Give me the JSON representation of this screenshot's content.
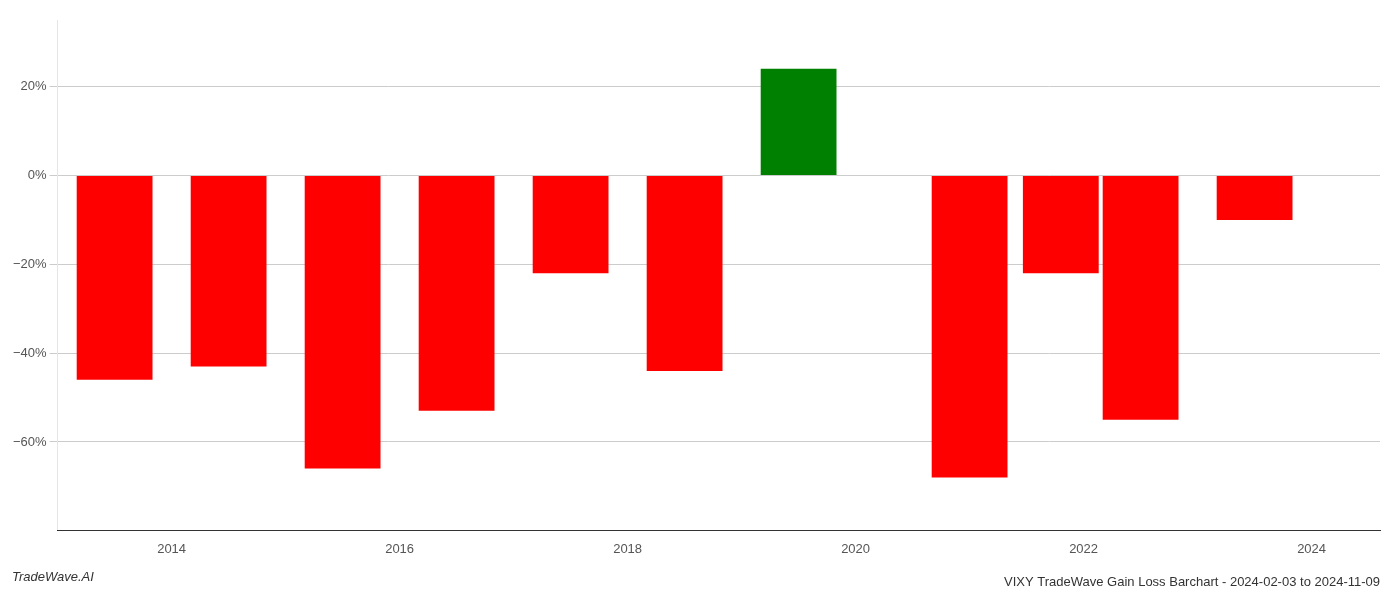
{
  "chart_data": {
    "type": "bar",
    "title": "VIXY TradeWave Gain Loss Barchart - 2024-02-03 to 2024-11-09",
    "annotations": [
      "TradeWave.AI"
    ],
    "x": [
      2013.5,
      2014.5,
      2015.5,
      2016.5,
      2017.5,
      2018.5,
      2019.5,
      2021.0,
      2021.8,
      2022.5,
      2023.5
    ],
    "values": [
      -46.0,
      -43.0,
      -66.0,
      -53.0,
      -22.0,
      -44.0,
      24.0,
      -68.0,
      -22.0,
      -55.0,
      -10.0
    ],
    "colors": [
      "#ff0000",
      "#ff0000",
      "#ff0000",
      "#ff0000",
      "#ff0000",
      "#ff0000",
      "#008000",
      "#ff0000",
      "#ff0000",
      "#ff0000",
      "#ff0000"
    ],
    "xlim": [
      2013.0,
      2024.6
    ],
    "xticks": [
      2014,
      2016,
      2018,
      2020,
      2022,
      2024
    ],
    "ylim": [
      -80,
      35
    ],
    "yticks": [
      {
        "value": -60,
        "label": "−60%"
      },
      {
        "value": -40,
        "label": "−40%"
      },
      {
        "value": -20,
        "label": "−20%"
      },
      {
        "value": 0,
        "label": "0%"
      },
      {
        "value": 20,
        "label": "20%"
      }
    ],
    "grid": true
  }
}
